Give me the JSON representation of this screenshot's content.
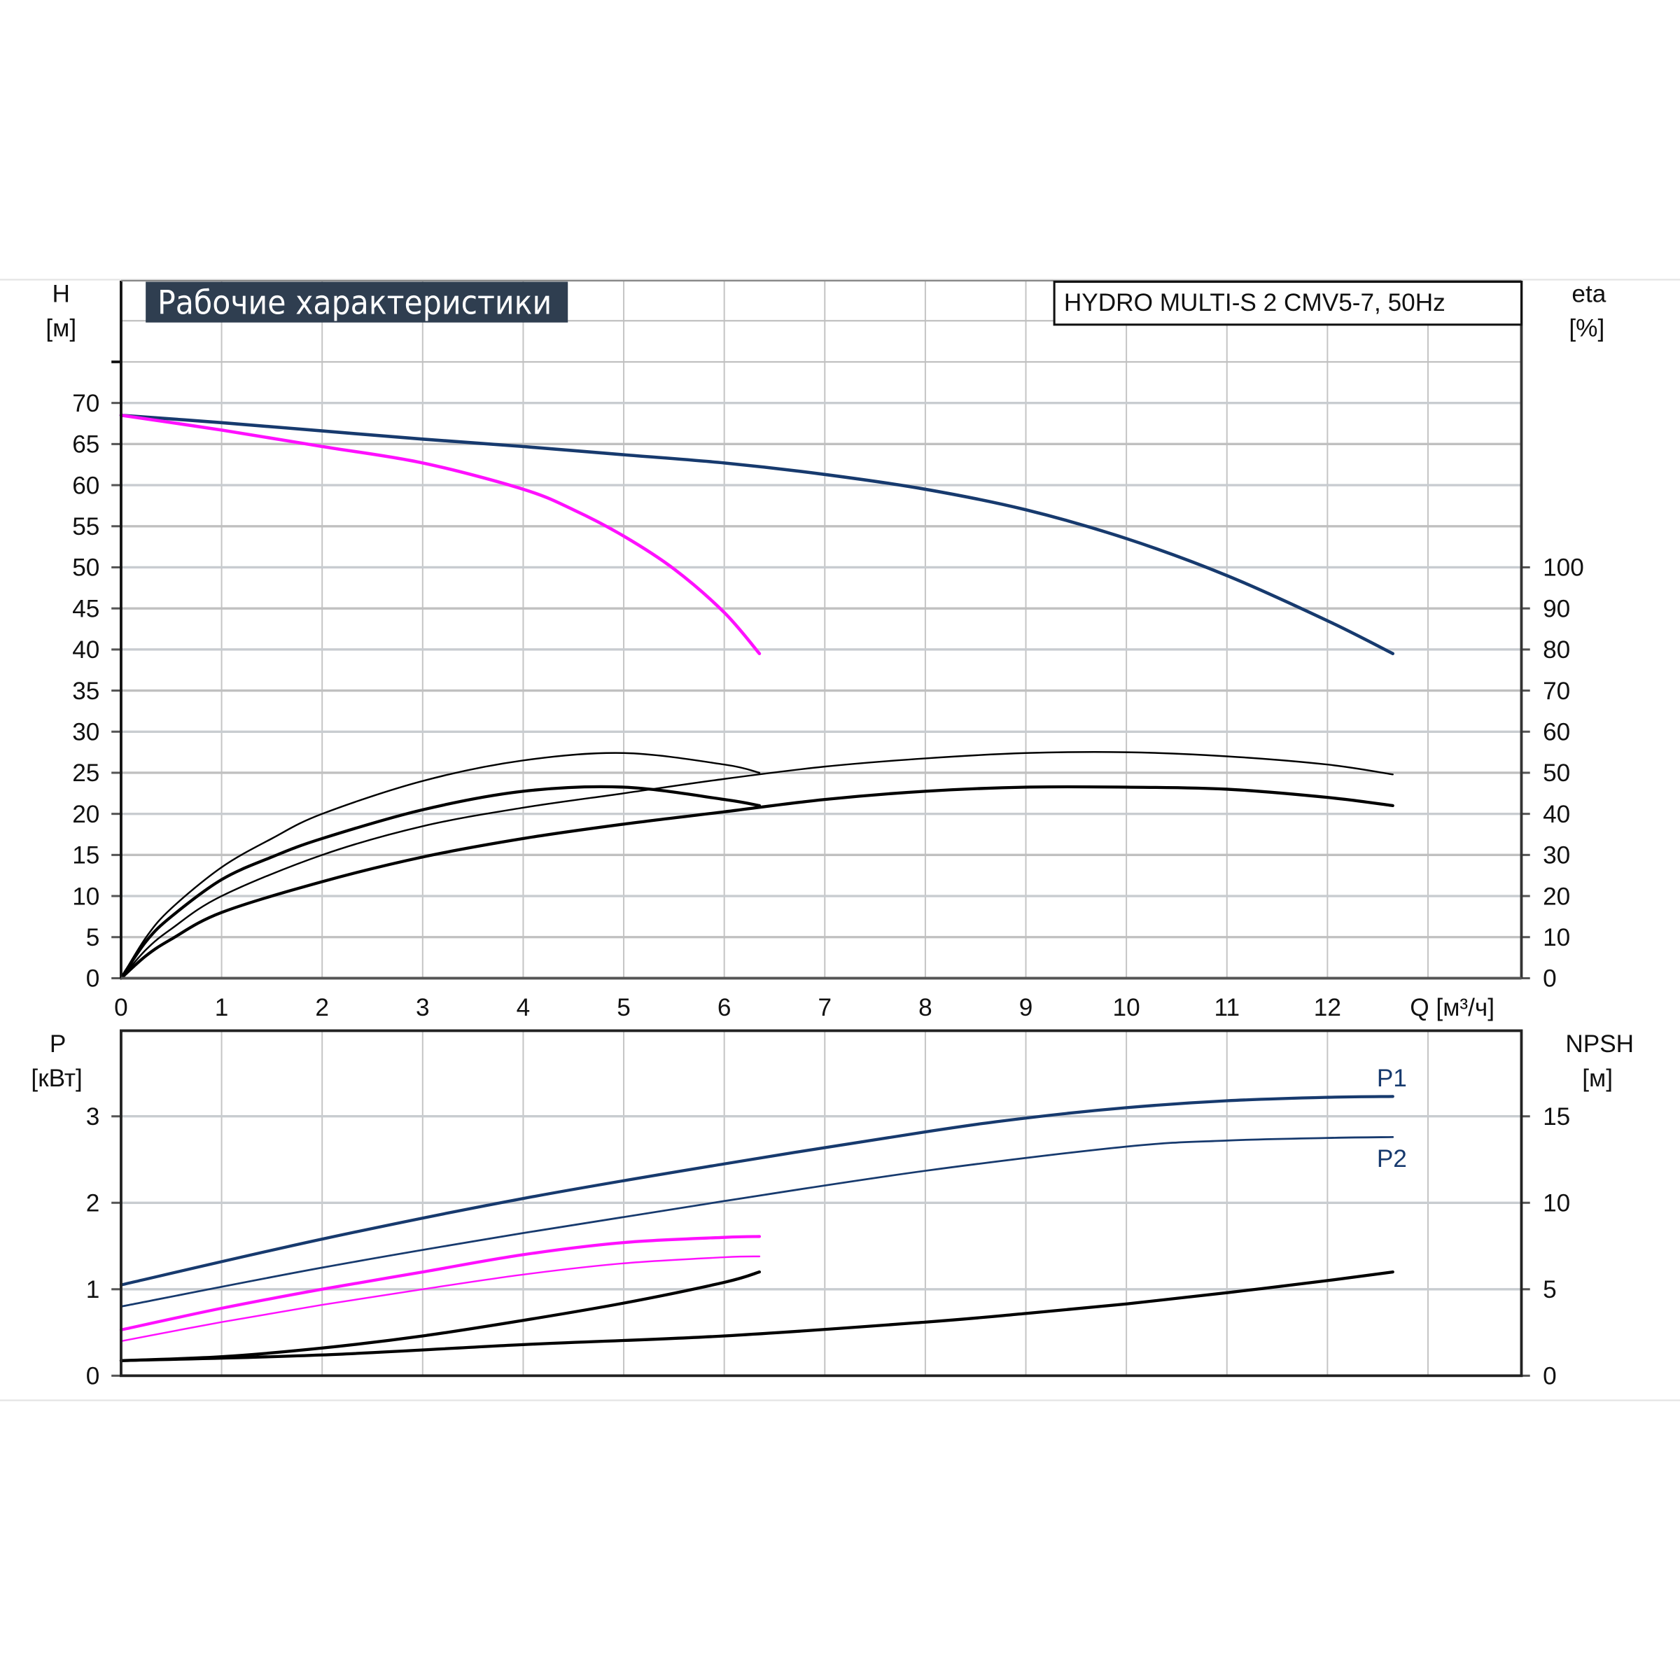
{
  "title": "Рабочие характеристики",
  "model_label": "HYDRO MULTI-S 2 CMV5-7, 50Hz",
  "colors": {
    "full_speed": "#173a6e",
    "reduced_speed": "#ff10ff",
    "efficiency": "#000000",
    "npsh": "#000000",
    "title_bg": "#2f3e50"
  },
  "chart_data": [
    {
      "type": "line",
      "name": "head-efficiency",
      "xlabel": "Q [м³/ч]",
      "ylabel_left": [
        "H",
        "[м]"
      ],
      "ylabel_right": [
        "eta",
        "[%]"
      ],
      "xlim": [
        0,
        13.9
      ],
      "ylim_left": [
        0,
        85
      ],
      "ylim_right": [
        0,
        170
      ],
      "x_ticks": [
        0,
        1,
        2,
        3,
        4,
        5,
        6,
        7,
        8,
        9,
        10,
        11,
        12
      ],
      "y_ticks_left": [
        0,
        5,
        10,
        15,
        20,
        25,
        30,
        35,
        40,
        45,
        50,
        55,
        60,
        65,
        70
      ],
      "y_ticks_right": [
        0,
        10,
        20,
        30,
        40,
        50,
        60,
        70,
        80,
        90,
        100
      ],
      "grid": true,
      "series": [
        {
          "kind": "head",
          "speed": "full",
          "axis": "left",
          "x": [
            0,
            1,
            2,
            3,
            4,
            5,
            6,
            7,
            8,
            9,
            10,
            11,
            12,
            12.65
          ],
          "y": [
            68.5,
            67.6,
            66.6,
            65.6,
            64.7,
            63.7,
            62.7,
            61.3,
            59.5,
            57,
            53.5,
            49,
            43.5,
            39.5
          ]
        },
        {
          "kind": "head",
          "speed": "reduced",
          "axis": "left",
          "x": [
            0,
            1,
            2,
            3,
            4,
            4.5,
            5,
            5.5,
            6,
            6.35
          ],
          "y": [
            68.5,
            66.7,
            64.7,
            62.7,
            59.5,
            57,
            53.8,
            49.8,
            44.5,
            39.5
          ]
        },
        {
          "kind": "efficiency",
          "speed": "reduced",
          "weight": "thin",
          "axis": "right",
          "x": [
            0,
            0.25,
            0.5,
            1,
            1.5,
            2,
            3,
            4,
            5,
            6,
            6.35
          ],
          "y": [
            0,
            10,
            17,
            27,
            34,
            40,
            48,
            53,
            54.8,
            52,
            50
          ]
        },
        {
          "kind": "efficiency",
          "speed": "reduced",
          "weight": "thick",
          "axis": "right",
          "x": [
            0,
            0.25,
            0.5,
            1,
            1.5,
            2,
            3,
            4,
            5,
            6,
            6.35
          ],
          "y": [
            0,
            9,
            15,
            24,
            29.5,
            34,
            41,
            45.5,
            46.5,
            43.5,
            42
          ]
        },
        {
          "kind": "efficiency",
          "speed": "full",
          "weight": "thin",
          "axis": "right",
          "x": [
            0,
            0.25,
            0.5,
            1,
            2,
            3,
            4,
            5,
            6,
            7,
            8,
            9,
            10,
            11,
            12,
            12.65
          ],
          "y": [
            0,
            7,
            12,
            20,
            30,
            37,
            41.5,
            45,
            48.5,
            51.5,
            53.5,
            54.8,
            55,
            54,
            52,
            49.6
          ]
        },
        {
          "kind": "efficiency",
          "speed": "full",
          "weight": "thick",
          "axis": "right",
          "x": [
            0,
            0.25,
            0.5,
            1,
            2,
            3,
            4,
            5,
            6,
            7,
            8,
            9,
            10,
            11,
            12,
            12.65
          ],
          "y": [
            0,
            5.5,
            9.5,
            16,
            23.5,
            29.5,
            34,
            37.5,
            40.5,
            43.5,
            45.5,
            46.5,
            46.5,
            46,
            44,
            42
          ]
        }
      ]
    },
    {
      "type": "line",
      "name": "power-npsh",
      "ylabel_left": [
        "P",
        "[кВт]"
      ],
      "ylabel_right": [
        "NPSH",
        "[м]"
      ],
      "xlim": [
        0,
        13.9
      ],
      "ylim_left": [
        0,
        4
      ],
      "ylim_right": [
        0,
        20
      ],
      "y_ticks_left": [
        0,
        1,
        2,
        3
      ],
      "y_ticks_right": [
        0,
        5,
        10,
        15
      ],
      "grid": true,
      "series": [
        {
          "kind": "power",
          "name": "P1",
          "speed": "full",
          "axis": "left",
          "x": [
            0,
            2,
            4,
            6,
            8,
            9,
            10,
            11,
            12,
            12.65
          ],
          "y": [
            1.05,
            1.58,
            2.05,
            2.45,
            2.82,
            2.98,
            3.1,
            3.18,
            3.22,
            3.23
          ]
        },
        {
          "kind": "power",
          "name": "P2",
          "speed": "full",
          "axis": "left",
          "x": [
            0,
            2,
            4,
            6,
            8,
            10,
            11,
            12,
            12.65
          ],
          "y": [
            0.8,
            1.25,
            1.65,
            2.02,
            2.37,
            2.65,
            2.72,
            2.75,
            2.76
          ]
        },
        {
          "kind": "power",
          "speed": "reduced",
          "weight": "thick",
          "axis": "left",
          "x": [
            0,
            1,
            2,
            3,
            4,
            5,
            6,
            6.35
          ],
          "y": [
            0.53,
            0.78,
            1.0,
            1.2,
            1.4,
            1.54,
            1.6,
            1.61
          ]
        },
        {
          "kind": "power",
          "speed": "reduced",
          "weight": "thin",
          "axis": "left",
          "x": [
            0,
            1,
            2,
            3,
            4,
            5,
            6,
            6.35
          ],
          "y": [
            0.4,
            0.62,
            0.82,
            1.0,
            1.17,
            1.3,
            1.37,
            1.38
          ]
        },
        {
          "kind": "npsh",
          "speed": "full",
          "axis": "right",
          "x": [
            0,
            2,
            4,
            6,
            8,
            9,
            10,
            11,
            12,
            12.65
          ],
          "y": [
            0.87,
            1.2,
            1.8,
            2.3,
            3.1,
            3.6,
            4.15,
            4.8,
            5.5,
            6.0
          ]
        },
        {
          "kind": "npsh",
          "speed": "reduced",
          "axis": "right",
          "x": [
            0,
            1,
            2,
            3,
            4,
            5,
            6,
            6.35
          ],
          "y": [
            0.87,
            1.1,
            1.6,
            2.3,
            3.2,
            4.2,
            5.4,
            6.0
          ]
        }
      ]
    }
  ]
}
